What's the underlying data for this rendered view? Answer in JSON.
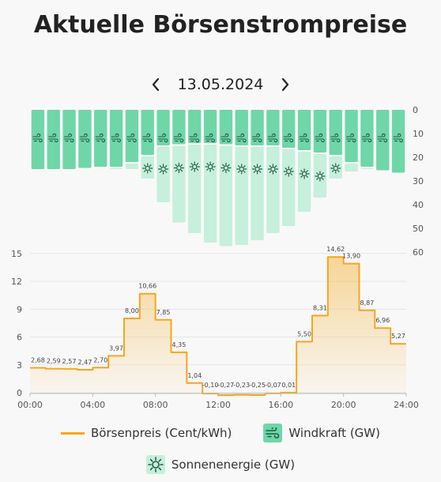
{
  "title": "Aktuelle Börsenstrompreise",
  "date": "13.05.2024",
  "legend": {
    "price": "Börsenpreis (Cent/kWh)",
    "wind": "Windkraft (GW)",
    "solar": "Sonnenenergie (GW)"
  },
  "colors": {
    "price_line": "#f5a623",
    "wind": "#6fd6a8",
    "solar": "#c6efdc",
    "icon": "#1d5f43"
  },
  "chart_data": [
    {
      "type": "bar",
      "stacked": true,
      "inverted_y": true,
      "x_hours": [
        0,
        1,
        2,
        3,
        4,
        5,
        6,
        7,
        8,
        9,
        10,
        11,
        12,
        13,
        14,
        15,
        16,
        17,
        18,
        19,
        20,
        21,
        22,
        23
      ],
      "yticks": [
        0,
        10,
        20,
        30,
        40,
        50,
        60
      ],
      "ylim": [
        0,
        60
      ],
      "series": [
        {
          "name": "Windkraft (GW)",
          "values": [
            25,
            25,
            25,
            24.5,
            24,
            24,
            22,
            19,
            15,
            14.5,
            14,
            14,
            14.5,
            15,
            15,
            15,
            16,
            17,
            18,
            19,
            22,
            24,
            25.5,
            26.5
          ]
        },
        {
          "name": "Sonnenenergie (GW)",
          "values": [
            0,
            0,
            0,
            0,
            0,
            0.5,
            3,
            10,
            24,
            33,
            38,
            42,
            43,
            42,
            40,
            37,
            33,
            26,
            19,
            10,
            4,
            1,
            0,
            0
          ]
        }
      ]
    },
    {
      "type": "line",
      "step": true,
      "x_ticks": [
        "00:00",
        "04:00",
        "08:00",
        "12:00",
        "16:00",
        "20:00",
        "24:00"
      ],
      "yticks": [
        0,
        3,
        6,
        9,
        12,
        15
      ],
      "ylim": [
        0,
        15
      ],
      "values": [
        2.68,
        2.59,
        2.57,
        2.47,
        2.7,
        3.97,
        8.0,
        10.66,
        7.85,
        4.35,
        1.04,
        -0.1,
        -0.27,
        -0.23,
        -0.25,
        -0.07,
        0.01,
        5.5,
        8.31,
        14.62,
        13.9,
        8.87,
        6.96,
        5.27
      ],
      "labels": [
        "2,68",
        "2,59",
        "2,57",
        "2,47",
        "2,70",
        "3,97",
        "8,00",
        "10,66",
        "7,85",
        "4,35",
        "1,04",
        "-0,10",
        "-0,27",
        "-0,23",
        "-0,25",
        "-0,07",
        "0,01",
        "5,50",
        "8,31",
        "14,62",
        "13,90",
        "8,87",
        "6,96",
        "5,27"
      ]
    }
  ]
}
